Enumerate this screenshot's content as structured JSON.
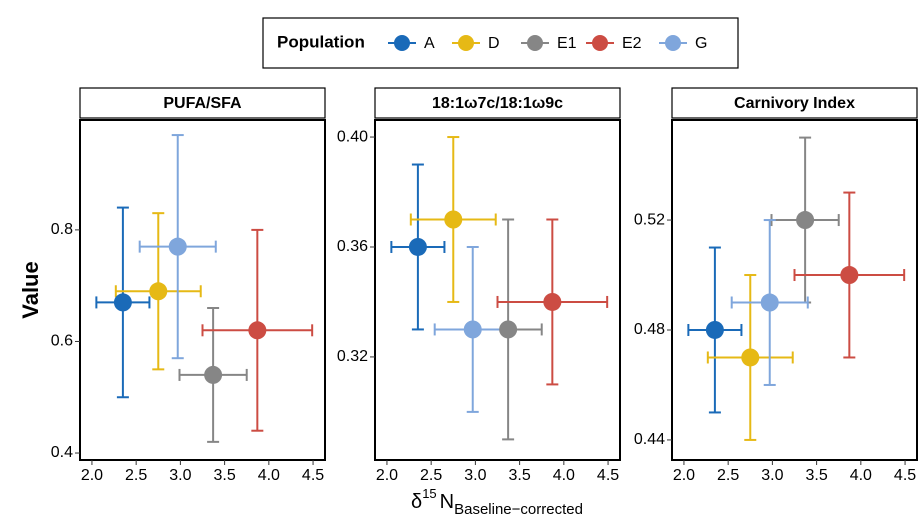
{
  "shared": {
    "legend_title": "Population",
    "ylabel": "Value",
    "xlabel": {
      "symbol": "δ",
      "superscript": "15",
      "base": "N",
      "subscript": "Baseline−corrected"
    }
  },
  "chart_data": [
    {
      "type": "scatter",
      "title": "PUFA/SFA",
      "xlim": [
        1.865,
        4.635
      ],
      "ylim": [
        0.3875,
        0.997
      ],
      "xticks": [
        {
          "value": 2,
          "label": "2.0"
        },
        {
          "value": 2.5,
          "label": "2.5"
        },
        {
          "value": 3,
          "label": "3.0"
        },
        {
          "value": 3.5,
          "label": "3.5"
        },
        {
          "value": 4,
          "label": "4.0"
        },
        {
          "value": 4.5,
          "label": "4.5"
        }
      ],
      "yticks": [
        0.4,
        0.6,
        0.8
      ],
      "series": [
        {
          "name": "A",
          "color": "#1a6ab8",
          "x": [
            2.35
          ],
          "xerr": [
            0.3
          ],
          "values": [
            0.67
          ],
          "yerr": [
            0.17
          ]
        },
        {
          "name": "D",
          "color": "#e6b915",
          "x": [
            2.75
          ],
          "xerr": [
            0.48
          ],
          "values": [
            0.69
          ],
          "yerr": [
            0.14
          ]
        },
        {
          "name": "E1",
          "color": "#868686",
          "x": [
            3.37
          ],
          "xerr": [
            0.38
          ],
          "values": [
            0.54
          ],
          "yerr": [
            0.12
          ]
        },
        {
          "name": "E2",
          "color": "#cc4c43",
          "x": [
            3.87
          ],
          "xerr": [
            0.62
          ],
          "values": [
            0.62
          ],
          "yerr": [
            0.18
          ]
        },
        {
          "name": "G",
          "color": "#7fa6dc",
          "x": [
            2.97
          ],
          "xerr": [
            0.43
          ],
          "values": [
            0.77
          ],
          "yerr": [
            0.2
          ]
        }
      ]
    },
    {
      "type": "scatter",
      "title": "18:1ω7c/18:1ω9c",
      "xlim": [
        1.865,
        4.635
      ],
      "ylim": [
        0.2825,
        0.4062
      ],
      "xticks": [
        {
          "value": 2,
          "label": "2.0"
        },
        {
          "value": 2.5,
          "label": "2.5"
        },
        {
          "value": 3,
          "label": "3.0"
        },
        {
          "value": 3.5,
          "label": "3.5"
        },
        {
          "value": 4,
          "label": "4.0"
        },
        {
          "value": 4.5,
          "label": "4.5"
        }
      ],
      "yticks": [
        0.32,
        0.36,
        {
          "value": 0.4,
          "label": "0.40"
        }
      ],
      "series": [
        {
          "x": [
            2.35
          ],
          "xerr": [
            0.3
          ],
          "values": [
            0.36
          ],
          "yerr": [
            0.03
          ]
        },
        {
          "x": [
            2.75
          ],
          "xerr": [
            0.48
          ],
          "values": [
            0.37
          ],
          "yerr": [
            0.03
          ]
        },
        {
          "x": [
            3.37
          ],
          "xerr": [
            0.38
          ],
          "values": [
            0.33
          ],
          "yerr": [
            0.04
          ]
        },
        {
          "x": [
            3.87
          ],
          "xerr": [
            0.62
          ],
          "values": [
            0.34
          ],
          "yerr": [
            0.03
          ]
        },
        {
          "x": [
            2.97
          ],
          "xerr": [
            0.43
          ],
          "values": [
            0.33
          ],
          "yerr": [
            0.03
          ]
        }
      ]
    },
    {
      "type": "scatter",
      "title": "Carnivory Index",
      "xlim": [
        1.865,
        4.635
      ],
      "ylim": [
        0.4327,
        0.5564
      ],
      "xticks": [
        {
          "value": 2,
          "label": "2.0"
        },
        {
          "value": 2.5,
          "label": "2.5"
        },
        {
          "value": 3,
          "label": "3.0"
        },
        {
          "value": 3.5,
          "label": "3.5"
        },
        {
          "value": 4,
          "label": "4.0"
        },
        {
          "value": 4.5,
          "label": "4.5"
        }
      ],
      "yticks": [
        0.44,
        0.48,
        0.52
      ],
      "series": [
        {
          "x": [
            2.35
          ],
          "xerr": [
            0.3
          ],
          "values": [
            0.48
          ],
          "yerr": [
            0.03
          ]
        },
        {
          "x": [
            2.75
          ],
          "xerr": [
            0.48
          ],
          "values": [
            0.47
          ],
          "yerr": [
            0.03
          ]
        },
        {
          "x": [
            3.37
          ],
          "xerr": [
            0.38
          ],
          "values": [
            0.52
          ],
          "yerr": [
            0.03
          ]
        },
        {
          "x": [
            3.87
          ],
          "xerr": [
            0.62
          ],
          "values": [
            0.5
          ],
          "yerr": [
            0.03
          ]
        },
        {
          "x": [
            2.97
          ],
          "xerr": [
            0.43
          ],
          "values": [
            0.49
          ],
          "yerr": [
            0.03
          ]
        }
      ]
    }
  ]
}
